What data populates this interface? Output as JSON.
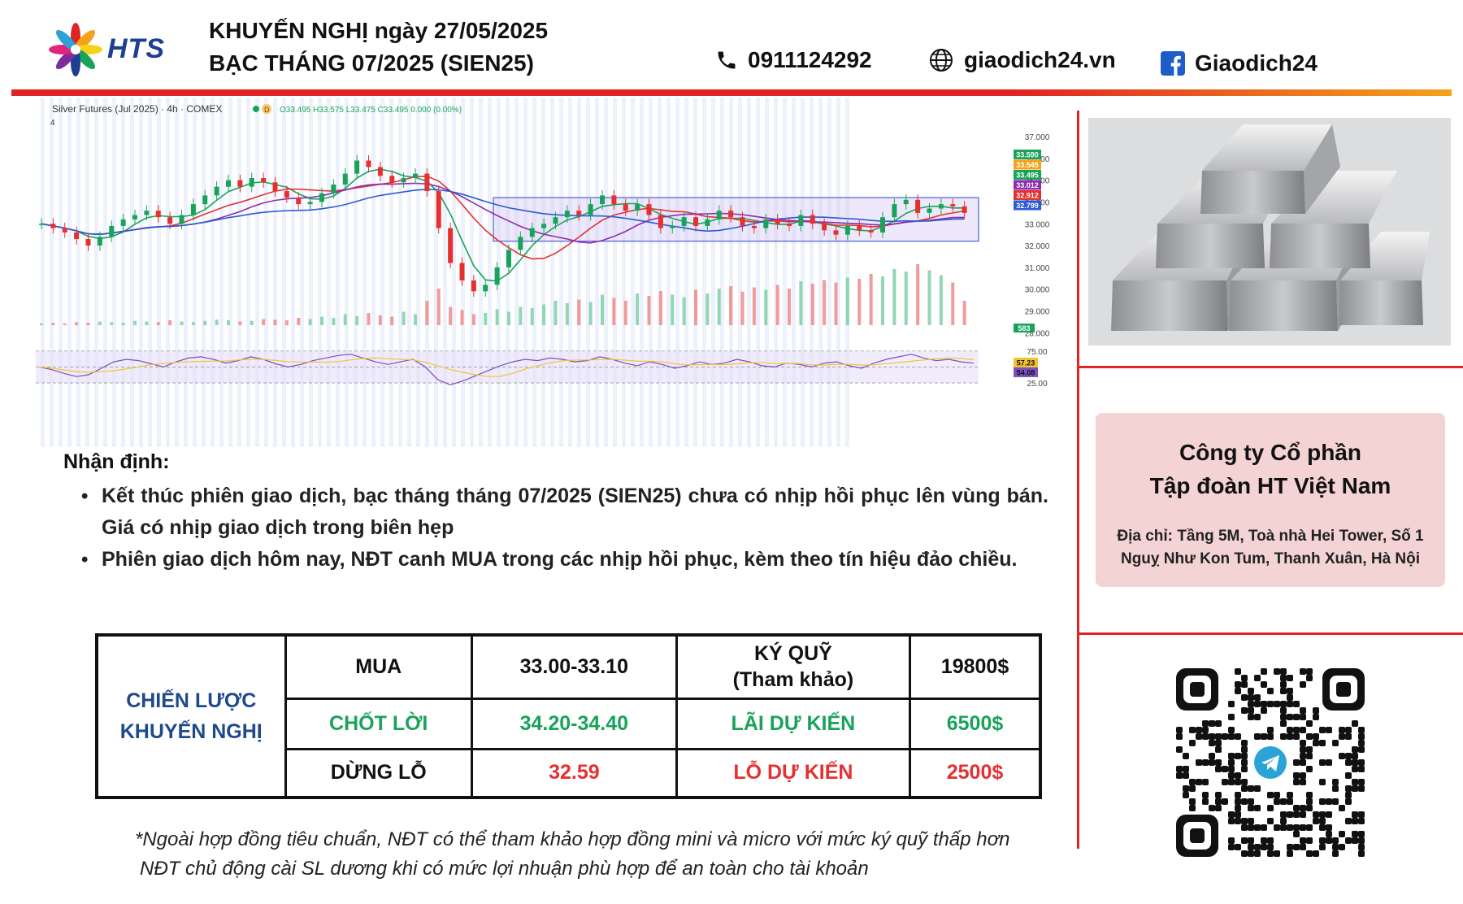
{
  "header": {
    "logo_text": "HTS",
    "title_line1": "KHUYẾN NGHỊ ngày 27/05/2025",
    "title_line2": "BẠC THÁNG 07/2025 (SIEN25)",
    "phone": "0911124292",
    "website": "giaodich24.vn",
    "facebook": "Giaodich24",
    "icons": [
      "phone-icon",
      "globe-icon",
      "facebook-icon"
    ]
  },
  "chart_data": {
    "type": "candlestick",
    "title": "Silver Futures (Jul 2025) · 4h · COMEX",
    "ohlc_label": "O33.495 H33.575 L33.475 C33.495 0.000 (0.00%)",
    "interval_badge": "D",
    "indicator_toggle": "4",
    "y_ticks": [
      "37.000",
      "36.000",
      "35.000",
      "34.000",
      "33.000",
      "32.000",
      "31.000",
      "30.000",
      "29.000",
      "28.000"
    ],
    "ylim": [
      27.6,
      37.3
    ],
    "price_tags": [
      {
        "value": "33.590",
        "color": "#19a35a"
      },
      {
        "value": "33.545",
        "color": "#f4a21a"
      },
      {
        "value": "33.495",
        "color": "#19a35a"
      },
      {
        "value": "33.012",
        "color": "#8e2bb0"
      },
      {
        "value": "32.912",
        "color": "#e53030"
      },
      {
        "value": "32.799",
        "color": "#2a5bd7"
      }
    ],
    "volume_tag": "583",
    "rsi_ticks": [
      "75.00",
      "25.00"
    ],
    "rsi_tags": [
      {
        "value": "57.23",
        "color": "#f4c430"
      },
      {
        "value": "54.08",
        "color": "#7b4fbf"
      }
    ],
    "range_box": {
      "low": 32.2,
      "high": 34.2
    },
    "close_series": [
      33.0,
      32.8,
      32.6,
      32.3,
      32.0,
      32.4,
      32.9,
      33.2,
      33.4,
      33.6,
      33.3,
      33.0,
      33.4,
      33.9,
      34.3,
      34.7,
      35.0,
      34.7,
      35.1,
      34.9,
      34.5,
      34.2,
      33.9,
      34.0,
      34.4,
      34.8,
      35.3,
      35.9,
      35.6,
      35.2,
      34.9,
      35.1,
      35.3,
      34.5,
      32.8,
      31.2,
      30.4,
      29.9,
      30.2,
      31.0,
      31.8,
      32.4,
      32.8,
      33.0,
      33.3,
      33.6,
      33.4,
      33.9,
      34.3,
      33.9,
      33.6,
      33.9,
      33.4,
      32.8,
      32.9,
      33.3,
      32.9,
      33.2,
      33.6,
      33.3,
      32.9,
      32.8,
      33.2,
      33.0,
      32.9,
      33.4,
      33.0,
      32.7,
      32.5,
      32.9,
      32.7,
      32.6,
      33.3,
      33.9,
      34.1,
      33.5,
      33.7,
      33.9,
      33.8,
      33.5
    ],
    "volume_series": [
      3,
      4,
      3,
      5,
      4,
      6,
      5,
      4,
      7,
      6,
      5,
      8,
      6,
      5,
      7,
      9,
      8,
      6,
      7,
      10,
      9,
      8,
      12,
      10,
      14,
      12,
      18,
      15,
      20,
      16,
      14,
      22,
      18,
      40,
      60,
      30,
      25,
      18,
      20,
      26,
      22,
      30,
      28,
      34,
      40,
      36,
      42,
      38,
      50,
      45,
      40,
      52,
      48,
      56,
      50,
      46,
      58,
      52,
      60,
      64,
      55,
      62,
      58,
      66,
      60,
      72,
      68,
      74,
      70,
      78,
      76,
      84,
      80,
      92,
      88,
      100,
      90,
      82,
      70,
      40
    ],
    "rsi_series": [
      50,
      46,
      40,
      35,
      38,
      48,
      58,
      62,
      60,
      55,
      50,
      58,
      64,
      66,
      62,
      56,
      60,
      66,
      62,
      55,
      50,
      54,
      60,
      64,
      68,
      70,
      64,
      58,
      54,
      58,
      62,
      50,
      30,
      22,
      28,
      36,
      44,
      52,
      58,
      62,
      60,
      64,
      62,
      58,
      60,
      66,
      62,
      56,
      52,
      58,
      54,
      48,
      52,
      58,
      54,
      56,
      62,
      58,
      52,
      50,
      56,
      54,
      50,
      56,
      58,
      52,
      48,
      56,
      62,
      66,
      70,
      64,
      60,
      62,
      58,
      56
    ]
  },
  "analysis": {
    "heading": "Nhận định:",
    "bullets": [
      "Kết thúc phiên giao dịch, bạc tháng tháng 07/2025 (SIEN25) chưa có nhịp hồi phục lên vùng bán. Giá có nhịp giao dịch trong biên hẹp",
      "Phiên giao dịch hôm nay, NĐT canh MUA trong các nhịp hồi phục, kèm theo tín hiệu đảo chiều."
    ]
  },
  "strategy": {
    "label_line1": "CHIẾN LƯỢC",
    "label_line2": "KHUYẾN NGHỊ",
    "buy_label": "MUA",
    "buy_range": "33.00-33.10",
    "margin_label_line1": "KÝ QUỸ",
    "margin_label_line2": "(Tham khảo)",
    "margin_value": "19800$",
    "tp_label": "CHỐT LỜI",
    "tp_range": "34.20-34.40",
    "profit_label": "LÃI DỰ KIẾN",
    "profit_value": "6500$",
    "sl_label": "DỪNG LỖ",
    "sl_value": "32.59",
    "loss_label": "LỖ DỰ KIẾN",
    "loss_value": "2500$"
  },
  "disclaimer": {
    "line1": "*Ngoài hợp đồng tiêu chuẩn, NĐT có thể tham khảo hợp đồng mini và micro với mức ký quỹ thấp hơn",
    "line2": "NĐT chủ động cài SL dương khi có mức lợi nhuận phù hợp để an toàn cho tài khoản"
  },
  "company": {
    "name_line1": "Công ty Cổ phần",
    "name_line2": "Tập đoàn HT Việt Nam",
    "address_line1": "Địa chỉ:  Tầng 5M, Toà nhà Hei Tower, Số 1",
    "address_line2": "Nguỵ Như Kon Tum, Thanh Xuân, Hà Nội"
  },
  "colors": {
    "accent_red": "#e02424",
    "accent_orange": "#f4a21a",
    "brand_blue": "#1d3f91",
    "profit_green": "#19a35a",
    "loss_red": "#e53030",
    "company_bg": "#f4d3d4"
  }
}
